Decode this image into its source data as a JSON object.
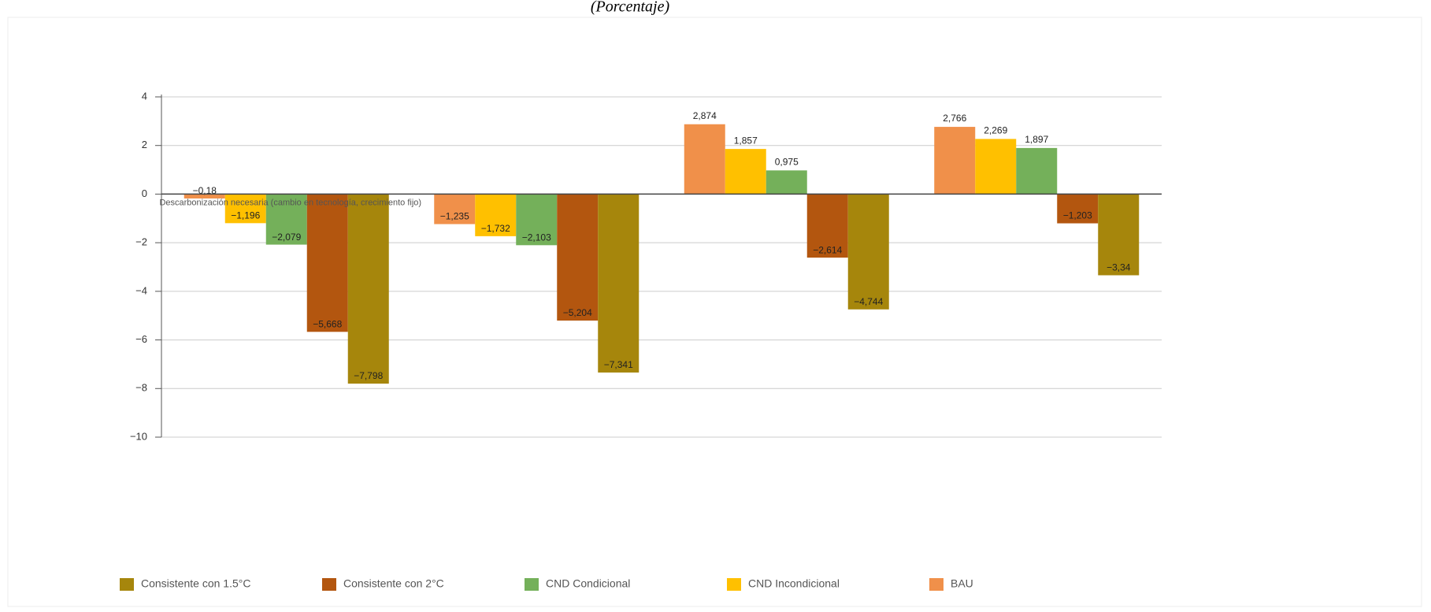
{
  "chart_data": {
    "type": "bar",
    "title": "(Porcentaje)",
    "categories": [
      "Descarbonización necesaria (cambio en tecnología, crecimiento fijo)",
      null,
      null,
      null
    ],
    "series": [
      {
        "name": "Consistente con 1.5°C",
        "color": "#a6860c",
        "values": [
          -7.798,
          -7.341,
          -4.744,
          -3.34
        ],
        "value_labels": [
          "−7,798",
          "−7,341",
          "−4,744",
          "−3,34"
        ]
      },
      {
        "name": "Consistente con 2°C",
        "color": "#b3560f",
        "values": [
          -5.668,
          -5.204,
          -2.614,
          -1.203
        ],
        "value_labels": [
          "−5,668",
          "−5,204",
          "−2,614",
          "−1,203"
        ]
      },
      {
        "name": "CND Condicional",
        "color": "#74b05a",
        "values": [
          -2.079,
          -2.103,
          0.975,
          1.897
        ],
        "value_labels": [
          "−2,079",
          "−2,103",
          "0,975",
          "1,897"
        ]
      },
      {
        "name": "CND Incondicional",
        "color": "#ffc000",
        "values": [
          -1.196,
          -1.732,
          1.857,
          2.269
        ],
        "value_labels": [
          "−1,196",
          "−1,732",
          "1,857",
          "2,269"
        ]
      },
      {
        "name": "BAU",
        "color": "#f0904a",
        "values": [
          -0.18,
          -1.235,
          2.874,
          2.766
        ],
        "value_labels": [
          "−0,18",
          "−1,235",
          "2,874",
          "2,766"
        ]
      }
    ],
    "ylim": [
      -10,
      4
    ],
    "yticks": [
      {
        "value": -10,
        "label": "−10"
      },
      {
        "value": -8,
        "label": "−8"
      },
      {
        "value": -6,
        "label": "−6"
      },
      {
        "value": -4,
        "label": "−4"
      },
      {
        "value": -2,
        "label": "−2"
      },
      0,
      2,
      4
    ],
    "grid": true,
    "legend": "bottom"
  }
}
